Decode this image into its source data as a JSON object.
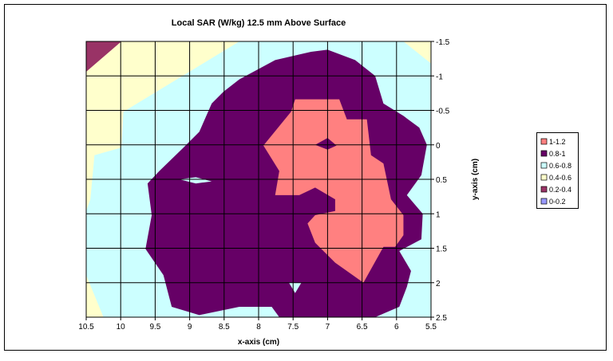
{
  "chart_data": {
    "type": "contour",
    "title": "Local SAR (W/kg) 12.5 mm Above Surface",
    "x_label": "x-axis (cm)",
    "y_label": "y-axis (cm)",
    "xlim": [
      10.5,
      5.5
    ],
    "ylim": [
      -1.5,
      2.5
    ],
    "xticks": [
      10.5,
      10,
      9.5,
      9,
      8.5,
      8,
      7.5,
      7,
      6.5,
      6,
      5.5
    ],
    "yticks": [
      -1.5,
      -1,
      -0.5,
      0,
      0.5,
      1,
      1.5,
      2,
      2.5
    ],
    "grid": true,
    "legend": "right",
    "series": [
      {
        "name": "1-1.2",
        "color": "#ff8080"
      },
      {
        "name": "0.8-1",
        "color": "#660066"
      },
      {
        "name": "0.6-0.8",
        "color": "#ccffff"
      },
      {
        "name": "0.4-0.6",
        "color": "#ffffcc"
      },
      {
        "name": "0.2-0.4",
        "color": "#993366"
      },
      {
        "name": "0-0.2",
        "color": "#9999ff"
      }
    ],
    "regions": [
      {
        "band": 2,
        "x": [
          10.5,
          5.5,
          5.5,
          10.5
        ],
        "y": [
          -1.5,
          -1.5,
          2.5,
          2.5
        ]
      },
      {
        "band": 3,
        "x": [
          10.5,
          8.28,
          9.96,
          9.99,
          10.38,
          10.44,
          10.5
        ],
        "y": [
          -1.5,
          -1.5,
          -0.48,
          0.04,
          0.15,
          0.79,
          0.96
        ]
      },
      {
        "band": 3,
        "x": [
          5.9,
          5.5,
          5.5
        ],
        "y": [
          -1.5,
          -1.5,
          -1.18
        ]
      },
      {
        "band": 3,
        "x": [
          10.5,
          10.25,
          10.5
        ],
        "y": [
          1.89,
          2.5,
          2.5
        ]
      },
      {
        "band": 4,
        "x": [
          10.5,
          9.99,
          10.5
        ],
        "y": [
          -1.5,
          -1.5,
          -1.06
        ]
      },
      {
        "band": 1,
        "x": [
          8.28,
          7.76,
          7.24,
          7.0,
          6.6,
          6.31,
          6.19,
          5.9,
          5.67,
          5.56,
          5.64,
          5.85,
          5.62,
          5.64,
          5.96,
          5.79,
          5.85,
          5.96,
          6.31,
          7.7,
          7.81,
          8.28,
          8.86,
          9.26,
          9.38,
          9.64,
          9.55,
          9.61,
          9.44,
          9.09,
          8.86,
          8.68,
          8.51
        ],
        "y": [
          -0.95,
          -1.23,
          -1.35,
          -1.38,
          -1.23,
          -1.0,
          -0.6,
          -0.42,
          -0.25,
          0.0,
          0.44,
          0.73,
          1.0,
          1.37,
          1.54,
          1.83,
          2.06,
          2.35,
          2.5,
          2.5,
          2.35,
          2.35,
          2.47,
          2.35,
          1.89,
          1.51,
          1.02,
          0.56,
          0.38,
          0.04,
          -0.19,
          -0.6,
          -0.77
        ]
      },
      {
        "band": 2,
        "x": [
          9.15,
          8.91,
          8.68,
          8.91
        ],
        "y": [
          0.5,
          0.47,
          0.53,
          0.56
        ]
      },
      {
        "band": 2,
        "x": [
          7.56,
          7.38,
          7.47
        ],
        "y": [
          2.0,
          2.0,
          2.15
        ]
      },
      {
        "band": 0,
        "x": [
          7.93,
          7.53,
          7.47,
          6.83,
          6.72,
          6.43,
          6.37,
          6.19,
          6.08,
          5.9,
          5.9,
          6.02,
          6.19,
          6.48,
          6.89,
          7.18,
          7.29,
          7.18,
          6.89,
          6.89,
          7.18,
          7.41,
          7.76,
          7.7
        ],
        "y": [
          0.01,
          -0.48,
          -0.66,
          -0.66,
          -0.37,
          -0.37,
          0.15,
          0.27,
          0.79,
          1.02,
          1.31,
          1.48,
          1.48,
          2.0,
          1.71,
          1.42,
          1.14,
          1.02,
          0.96,
          0.79,
          0.62,
          0.73,
          0.73,
          0.38
        ]
      },
      {
        "band": 1,
        "x": [
          7.18,
          7.0,
          6.87,
          7.0
        ],
        "y": [
          0.0,
          -0.1,
          0.01,
          0.07
        ]
      }
    ]
  }
}
